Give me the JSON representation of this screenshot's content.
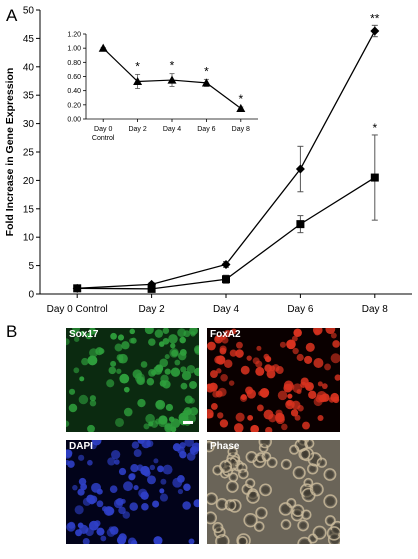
{
  "panel_a_letter": "A",
  "panel_b_letter": "B",
  "chart_data": [
    {
      "type": "line",
      "ylabel": "Fold Increase in Gene Expression",
      "xlabel": "",
      "categories": [
        "Day 0 Control",
        "Day 2",
        "Day 4",
        "Day 6",
        "Day 8"
      ],
      "ylim": [
        0,
        50
      ],
      "yticks": [
        0,
        5,
        10,
        15,
        20,
        25,
        30,
        35,
        40,
        45,
        50
      ],
      "grid": false,
      "series": [
        {
          "marker": "diamond",
          "values": [
            1.0,
            1.7,
            5.2,
            22.0,
            46.3
          ],
          "errors": [
            0.3,
            0.3,
            0.5,
            4.0,
            1.0
          ]
        },
        {
          "marker": "square",
          "values": [
            1.0,
            0.9,
            2.6,
            12.3,
            20.5
          ],
          "errors": [
            0.3,
            0.3,
            0.7,
            1.5,
            7.5
          ]
        }
      ],
      "annotations": [
        {
          "category": "Day 8",
          "series": 0,
          "text": "**"
        },
        {
          "category": "Day 8",
          "series": 1,
          "text": "*"
        }
      ]
    },
    {
      "type": "line",
      "xlabel": "",
      "ylabel": "",
      "categories": [
        "Day 0\nControl",
        "Day 2",
        "Day 4",
        "Day 6",
        "Day 8"
      ],
      "ylim": [
        0,
        1.2
      ],
      "yticks": [
        "0.00",
        "0.20",
        "0.40",
        "0.60",
        "0.80",
        "1.00",
        "1.20"
      ],
      "grid": false,
      "series": [
        {
          "marker": "triangle",
          "values": [
            1.0,
            0.53,
            0.55,
            0.51,
            0.15
          ],
          "errors": [
            0.01,
            0.1,
            0.09,
            0.05,
            0.02
          ]
        }
      ],
      "annotations": [
        {
          "category": "Day 2",
          "text": "*"
        },
        {
          "category": "Day 4",
          "text": "*"
        },
        {
          "category": "Day 6",
          "text": "*"
        },
        {
          "category": "Day 8",
          "text": "*"
        }
      ]
    }
  ],
  "micrographs": [
    {
      "id": "sox17",
      "label": "Sox17",
      "color": "#2e9e3c",
      "background": "#0b2a10",
      "style": "nuclei"
    },
    {
      "id": "foxa2",
      "label": "FoxA2",
      "color": "#d8321f",
      "background": "#0a0000",
      "style": "nuclei"
    },
    {
      "id": "dapi",
      "label": "DAPI",
      "color": "#2f40c8",
      "background": "#02031a",
      "style": "nuclei"
    },
    {
      "id": "phase",
      "label": "Phase",
      "color": "#c8b89a",
      "background": "#6a6458",
      "style": "phase"
    }
  ]
}
